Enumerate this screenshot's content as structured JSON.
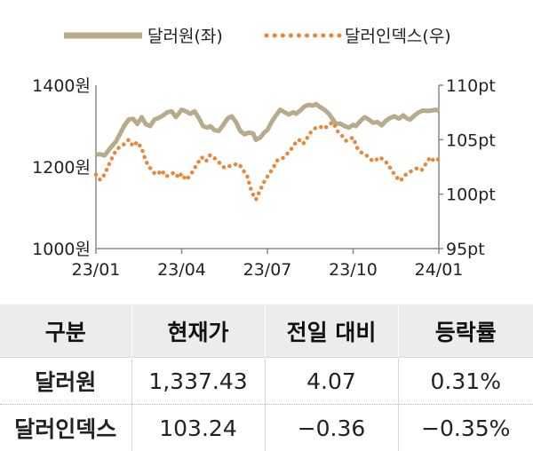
{
  "chart_data": {
    "type": "line",
    "legend_placement": "top",
    "x_ticks": [
      "23/01",
      "23/04",
      "23/07",
      "23/10",
      "24/01"
    ],
    "y_left": {
      "min": 1000,
      "max": 1400,
      "ticks": [
        "1400원",
        "1200원",
        "1000원"
      ]
    },
    "y_right": {
      "min": 95,
      "max": 110,
      "ticks": [
        "110pt",
        "105pt",
        "100pt",
        "95pt"
      ]
    },
    "series": [
      {
        "name": "달러원(좌)",
        "axis": "left",
        "style": "solid",
        "color": "#b8ab8c",
        "points": [
          [
            0,
            1230
          ],
          [
            0.15,
            1231
          ],
          [
            0.3,
            1228
          ],
          [
            0.5,
            1246
          ],
          [
            0.7,
            1262
          ],
          [
            0.85,
            1282
          ],
          [
            1.0,
            1302
          ],
          [
            1.15,
            1316
          ],
          [
            1.3,
            1318
          ],
          [
            1.45,
            1305
          ],
          [
            1.6,
            1322
          ],
          [
            1.75,
            1304
          ],
          [
            1.9,
            1300
          ],
          [
            2.05,
            1316
          ],
          [
            2.2,
            1320
          ],
          [
            2.35,
            1326
          ],
          [
            2.5,
            1334
          ],
          [
            2.65,
            1336
          ],
          [
            2.8,
            1322
          ],
          [
            3.0,
            1340
          ],
          [
            3.15,
            1336
          ],
          [
            3.3,
            1330
          ],
          [
            3.45,
            1336
          ],
          [
            3.6,
            1320
          ],
          [
            3.75,
            1300
          ],
          [
            3.9,
            1296
          ],
          [
            4.0,
            1300
          ],
          [
            4.15,
            1290
          ],
          [
            4.3,
            1288
          ],
          [
            4.45,
            1302
          ],
          [
            4.6,
            1318
          ],
          [
            4.75,
            1324
          ],
          [
            4.9,
            1310
          ],
          [
            5.05,
            1288
          ],
          [
            5.2,
            1280
          ],
          [
            5.35,
            1284
          ],
          [
            5.5,
            1282
          ],
          [
            5.6,
            1266
          ],
          [
            5.75,
            1272
          ],
          [
            5.9,
            1285
          ],
          [
            6.0,
            1290
          ],
          [
            6.15,
            1310
          ],
          [
            6.3,
            1326
          ],
          [
            6.45,
            1340
          ],
          [
            6.6,
            1334
          ],
          [
            6.75,
            1328
          ],
          [
            6.9,
            1334
          ],
          [
            7.0,
            1330
          ],
          [
            7.15,
            1338
          ],
          [
            7.3,
            1348
          ],
          [
            7.45,
            1352
          ],
          [
            7.6,
            1350
          ],
          [
            7.7,
            1354
          ],
          [
            7.85,
            1346
          ],
          [
            8.0,
            1340
          ],
          [
            8.15,
            1330
          ],
          [
            8.25,
            1320
          ],
          [
            8.4,
            1306
          ],
          [
            8.55,
            1306
          ],
          [
            8.7,
            1300
          ],
          [
            8.85,
            1296
          ],
          [
            9.0,
            1303
          ],
          [
            9.1,
            1300
          ],
          [
            9.25,
            1312
          ],
          [
            9.4,
            1322
          ],
          [
            9.55,
            1316
          ],
          [
            9.7,
            1308
          ],
          [
            9.85,
            1310
          ],
          [
            10.0,
            1302
          ],
          [
            10.15,
            1313
          ],
          [
            10.3,
            1320
          ],
          [
            10.45,
            1324
          ],
          [
            10.6,
            1318
          ],
          [
            10.75,
            1326
          ],
          [
            10.9,
            1318
          ],
          [
            11.0,
            1316
          ],
          [
            11.15,
            1326
          ],
          [
            11.3,
            1334
          ],
          [
            11.45,
            1338
          ],
          [
            11.6,
            1337
          ],
          [
            11.75,
            1338
          ],
          [
            11.9,
            1340
          ],
          [
            12.0,
            1337
          ]
        ]
      },
      {
        "name": "달러인덱스(우)",
        "axis": "right",
        "style": "dotted",
        "color": "#e8873a",
        "points": [
          [
            0,
            101.8
          ],
          [
            0.15,
            101.3
          ],
          [
            0.3,
            101.8
          ],
          [
            0.5,
            103.0
          ],
          [
            0.7,
            104.0
          ],
          [
            0.85,
            104.4
          ],
          [
            1.0,
            104.6
          ],
          [
            1.15,
            105.0
          ],
          [
            1.3,
            104.4
          ],
          [
            1.45,
            104.8
          ],
          [
            1.6,
            104.2
          ],
          [
            1.75,
            103.0
          ],
          [
            1.9,
            102.4
          ],
          [
            2.0,
            102.0
          ],
          [
            2.15,
            101.8
          ],
          [
            2.3,
            102.2
          ],
          [
            2.45,
            101.6
          ],
          [
            2.6,
            101.8
          ],
          [
            2.75,
            102.0
          ],
          [
            2.9,
            101.5
          ],
          [
            3.0,
            101.9
          ],
          [
            3.15,
            101.3
          ],
          [
            3.3,
            101.7
          ],
          [
            3.5,
            102.6
          ],
          [
            3.7,
            103.4
          ],
          [
            3.85,
            103.0
          ],
          [
            4.0,
            103.6
          ],
          [
            4.2,
            103.2
          ],
          [
            4.35,
            102.8
          ],
          [
            4.5,
            102.4
          ],
          [
            4.7,
            102.6
          ],
          [
            4.85,
            102.7
          ],
          [
            5.0,
            102.8
          ],
          [
            5.15,
            102.2
          ],
          [
            5.3,
            101.6
          ],
          [
            5.45,
            100.2
          ],
          [
            5.6,
            99.5
          ],
          [
            5.75,
            100.4
          ],
          [
            5.9,
            101.2
          ],
          [
            6.05,
            101.8
          ],
          [
            6.2,
            102.4
          ],
          [
            6.35,
            103.1
          ],
          [
            6.5,
            103.2
          ],
          [
            6.65,
            103.6
          ],
          [
            6.8,
            104.0
          ],
          [
            6.95,
            104.6
          ],
          [
            7.1,
            105.0
          ],
          [
            7.25,
            104.6
          ],
          [
            7.4,
            105.2
          ],
          [
            7.55,
            105.8
          ],
          [
            7.7,
            106.1
          ],
          [
            7.85,
            106.2
          ],
          [
            8.0,
            106.0
          ],
          [
            8.15,
            106.4
          ],
          [
            8.3,
            106.6
          ],
          [
            8.45,
            105.8
          ],
          [
            8.6,
            105.4
          ],
          [
            8.75,
            104.9
          ],
          [
            9.0,
            105.2
          ],
          [
            9.15,
            104.2
          ],
          [
            9.3,
            103.8
          ],
          [
            9.45,
            103.6
          ],
          [
            9.6,
            103.2
          ],
          [
            9.75,
            103.0
          ],
          [
            9.9,
            103.4
          ],
          [
            10.05,
            103.2
          ],
          [
            10.2,
            102.8
          ],
          [
            10.35,
            102.2
          ],
          [
            10.5,
            101.6
          ],
          [
            10.65,
            101.2
          ],
          [
            10.8,
            101.7
          ],
          [
            10.95,
            102.0
          ],
          [
            11.1,
            102.2
          ],
          [
            11.25,
            102.4
          ],
          [
            11.4,
            102.2
          ],
          [
            11.55,
            102.8
          ],
          [
            11.7,
            103.4
          ],
          [
            11.85,
            103.0
          ],
          [
            12.0,
            103.24
          ]
        ]
      }
    ]
  },
  "table": {
    "headers": [
      "구분",
      "현재가",
      "전일 대비",
      "등락률"
    ],
    "rows": [
      [
        "달러원",
        "1,337.43",
        "4.07",
        "0.31%"
      ],
      [
        "달러인덱스",
        "103.24",
        "−0.36",
        "−0.35%"
      ]
    ]
  }
}
